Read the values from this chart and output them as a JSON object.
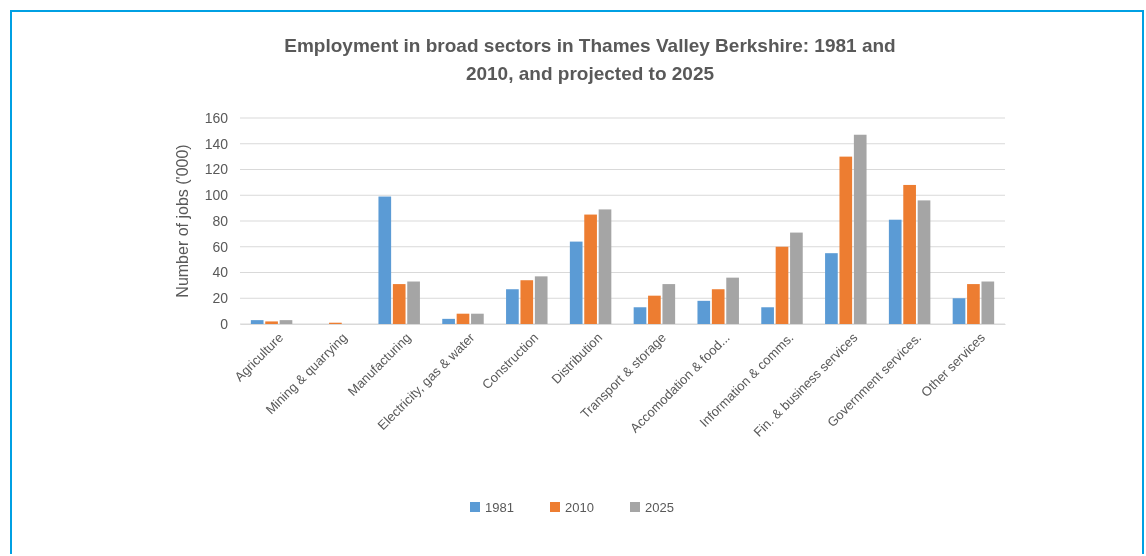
{
  "chart_data": {
    "type": "bar",
    "title": "Employment in broad sectors in Thames Valley Berkshire:  1981 and 2010, and projected to 2025",
    "ylabel": "Number of jobs ('000)",
    "categories": [
      "Agriculture",
      "Mining & quarrying",
      "Manufacturing",
      "Electricity, gas & water",
      "Construction",
      "Distribution",
      "Transport & storage",
      "Accomodation & food...",
      "Information & comms.",
      "Fin. & business services",
      "Government services.",
      "Other services"
    ],
    "series": [
      {
        "name": "1981",
        "color": "#5b9bd5",
        "values": [
          3,
          0,
          99,
          4,
          27,
          64,
          13,
          18,
          13,
          55,
          81,
          20
        ]
      },
      {
        "name": "2010",
        "color": "#ed7d31",
        "values": [
          2,
          1,
          31,
          8,
          34,
          85,
          22,
          27,
          60,
          130,
          108,
          31
        ]
      },
      {
        "name": "2025",
        "color": "#a5a5a5",
        "values": [
          3,
          0,
          33,
          8,
          37,
          89,
          31,
          36,
          71,
          147,
          96,
          33
        ]
      }
    ],
    "ylim": [
      0,
      160
    ],
    "yticks": [
      0,
      20,
      40,
      60,
      80,
      100,
      120,
      140,
      160
    ],
    "grid": "y",
    "legend": "bottom"
  }
}
